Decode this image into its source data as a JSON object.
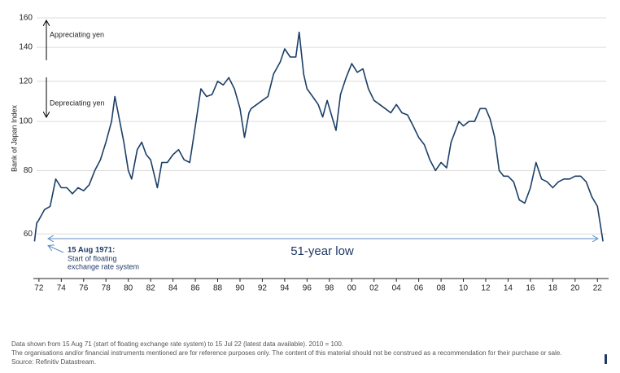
{
  "chart_data": {
    "type": "line",
    "ylabel": "Bank of Japan Index",
    "log_scale": true,
    "grid": true,
    "x": [
      1971.6,
      1971.8,
      1972,
      1972.5,
      1973,
      1973.5,
      1974,
      1974.5,
      1975,
      1975.5,
      1976,
      1976.5,
      1977,
      1977.5,
      1978,
      1978.5,
      1978.8,
      1979.2,
      1979.6,
      1980,
      1980.3,
      1980.8,
      1981.2,
      1981.6,
      1982,
      1982.6,
      1983,
      1983.5,
      1984,
      1984.5,
      1985,
      1985.5,
      1986,
      1986.5,
      1987,
      1987.5,
      1988,
      1988.5,
      1989,
      1989.5,
      1990,
      1990.4,
      1990.8,
      1991,
      1991.5,
      1992,
      1992.5,
      1993,
      1993.6,
      1994,
      1994.5,
      1995,
      1995.3,
      1995.7,
      1996,
      1996.5,
      1997,
      1997.4,
      1997.8,
      1998.3,
      1998.6,
      1999,
      1999.5,
      2000,
      2000.5,
      2001,
      2001.5,
      2002,
      2002.5,
      2003,
      2003.5,
      2004,
      2004.5,
      2005,
      2005.5,
      2006,
      2006.5,
      2007,
      2007.5,
      2008,
      2008.5,
      2008.9,
      2009.3,
      2009.6,
      2010,
      2010.5,
      2011,
      2011.5,
      2012,
      2012.4,
      2012.8,
      2013.2,
      2013.6,
      2014,
      2014.5,
      2015,
      2015.5,
      2016,
      2016.5,
      2017,
      2017.5,
      2018,
      2018.5,
      2019,
      2019.5,
      2020,
      2020.5,
      2021,
      2021.5,
      2022,
      2022.5
    ],
    "series": [
      {
        "color": "#1b3f66",
        "values": [
          58,
          63,
          64,
          67,
          68,
          77,
          74,
          74,
          72,
          74,
          73,
          75,
          80,
          84,
          91,
          100,
          112,
          101,
          91,
          80,
          77,
          88,
          91,
          86,
          84,
          74,
          83,
          83,
          86,
          88,
          84,
          83,
          98,
          116,
          112,
          113,
          120,
          118,
          122,
          116,
          106,
          93,
          104,
          106,
          108,
          110,
          112,
          124,
          131,
          139,
          134,
          134,
          150,
          124,
          116,
          112,
          108,
          102,
          110,
          101,
          96,
          113,
          122,
          130,
          125,
          127,
          116,
          110,
          108,
          106,
          104,
          108,
          104,
          103,
          98,
          93,
          90,
          84,
          80,
          83,
          81,
          91,
          96,
          100,
          98,
          100,
          100,
          106,
          106,
          101,
          93,
          80,
          78,
          78,
          76,
          70,
          69,
          74,
          83,
          77,
          76,
          74,
          76,
          77,
          77,
          78,
          78,
          76,
          71,
          68,
          58
        ]
      }
    ],
    "xlim": [
      1971.5,
      2023
    ],
    "ylim": [
      49,
      160
    ],
    "yticks": [
      60,
      80,
      100,
      120,
      140,
      160
    ],
    "xticks": [
      {
        "value": 1972,
        "label": "72"
      },
      {
        "value": 1974,
        "label": "74"
      },
      {
        "value": 1976,
        "label": "76"
      },
      {
        "value": 1978,
        "label": "78"
      },
      {
        "value": 1980,
        "label": "80"
      },
      {
        "value": 1982,
        "label": "82"
      },
      {
        "value": 1984,
        "label": "84"
      },
      {
        "value": 1986,
        "label": "86"
      },
      {
        "value": 1988,
        "label": "88"
      },
      {
        "value": 1990,
        "label": "90"
      },
      {
        "value": 1992,
        "label": "92"
      },
      {
        "value": 1994,
        "label": "94"
      },
      {
        "value": 1996,
        "label": "96"
      },
      {
        "value": 1998,
        "label": "98"
      },
      {
        "value": 2000,
        "label": "00"
      },
      {
        "value": 2002,
        "label": "02"
      },
      {
        "value": 2004,
        "label": "04"
      },
      {
        "value": 2006,
        "label": "06"
      },
      {
        "value": 2008,
        "label": "08"
      },
      {
        "value": 2010,
        "label": "10"
      },
      {
        "value": 2012,
        "label": "12"
      },
      {
        "value": 2014,
        "label": "14"
      },
      {
        "value": 2016,
        "label": "16"
      },
      {
        "value": 2018,
        "label": "18"
      },
      {
        "value": 2020,
        "label": "20"
      },
      {
        "value": 2022,
        "label": "22"
      }
    ],
    "annotations": [
      "Appreciating yen",
      "Depreciating yen",
      "15 Aug 1971:",
      "Start of floating",
      "exchange rate system",
      "51-year low"
    ],
    "footnotes": [
      "Data shown from 15 Aug 71 (start of floating exchange rate system) to 15 Jul 22 (latest data available).  2010 = 100.",
      "The organisations and/or financial instruments mentioned are for reference purposes only. The content of this material should not be construed as a recommendation for their purchase or sale.",
      "Source: Refinitiv Datastream."
    ]
  }
}
